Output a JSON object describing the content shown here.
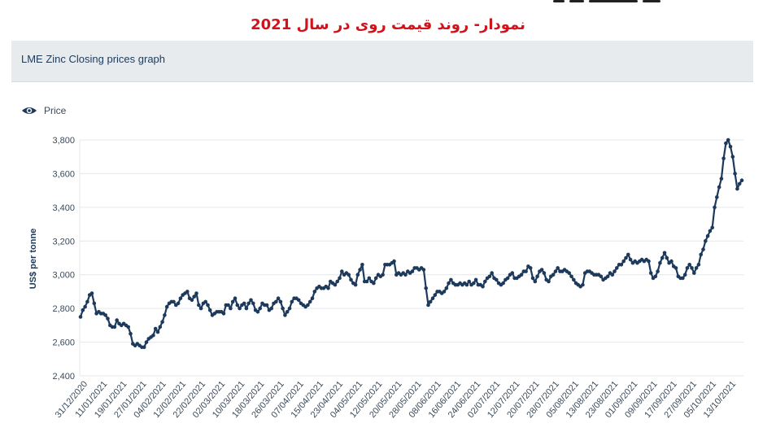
{
  "page": {
    "title": "نمودار- روند قیمت روی در سال 2021"
  },
  "panel": {
    "title": "LME Zinc Closing prices graph"
  },
  "legend": {
    "icon": "eye-icon",
    "label": "Price"
  },
  "colors": {
    "line": "#1d3a5c",
    "grid": "#e4e7ea",
    "header_bg": "#e7ebee",
    "title_red": "#d0121b"
  },
  "chart_data": {
    "type": "line",
    "title": "LME Zinc Closing prices graph",
    "ylabel": "US$ per tonne",
    "xlabel": "",
    "ylim": [
      2400,
      3800
    ],
    "yticks": [
      2400,
      2600,
      2800,
      3000,
      3200,
      3400,
      3600,
      3800
    ],
    "ytick_labels": [
      "2,400",
      "2,600",
      "2,800",
      "3,000",
      "3,200",
      "3,400",
      "3,600",
      "3,800"
    ],
    "x_tick_labels": [
      "31/12/2020",
      "11/01/2021",
      "19/01/2021",
      "27/01/2021",
      "04/02/2021",
      "12/02/2021",
      "22/02/2021",
      "02/03/2021",
      "10/03/2021",
      "18/03/2021",
      "26/03/2021",
      "07/04/2021",
      "15/04/2021",
      "23/04/2021",
      "04/05/2021",
      "12/05/2021",
      "20/05/2021",
      "28/05/2021",
      "08/06/2021",
      "16/06/2021",
      "24/06/2021",
      "02/07/2021",
      "12/07/2021",
      "20/07/2021",
      "28/07/2021",
      "05/08/2021",
      "13/08/2021",
      "23/08/2021",
      "01/09/2021",
      "09/09/2021",
      "17/09/2021",
      "27/09/2021",
      "05/10/2021",
      "13/10/2021"
    ],
    "grid": true,
    "legend_position": "top-left",
    "series": [
      {
        "name": "Price",
        "values": [
          2750,
          2790,
          2810,
          2840,
          2880,
          2890,
          2830,
          2770,
          2780,
          2770,
          2770,
          2760,
          2740,
          2700,
          2690,
          2690,
          2730,
          2710,
          2700,
          2710,
          2700,
          2690,
          2650,
          2590,
          2580,
          2590,
          2580,
          2570,
          2570,
          2600,
          2620,
          2630,
          2640,
          2680,
          2660,
          2690,
          2720,
          2760,
          2810,
          2830,
          2840,
          2840,
          2820,
          2830,
          2860,
          2880,
          2890,
          2900,
          2860,
          2850,
          2870,
          2890,
          2820,
          2800,
          2830,
          2840,
          2820,
          2790,
          2760,
          2770,
          2780,
          2780,
          2780,
          2770,
          2820,
          2820,
          2800,
          2840,
          2860,
          2820,
          2800,
          2820,
          2830,
          2800,
          2830,
          2850,
          2830,
          2790,
          2780,
          2800,
          2830,
          2820,
          2820,
          2790,
          2800,
          2830,
          2840,
          2860,
          2840,
          2800,
          2760,
          2780,
          2800,
          2840,
          2860,
          2860,
          2850,
          2830,
          2820,
          2810,
          2820,
          2840,
          2860,
          2900,
          2920,
          2930,
          2920,
          2920,
          2930,
          2920,
          2960,
          2950,
          2940,
          2960,
          2980,
          3020,
          3000,
          3010,
          3000,
          2970,
          2950,
          2940,
          3000,
          3030,
          3060,
          2960,
          2960,
          2980,
          2960,
          2950,
          2980,
          3000,
          2990,
          3000,
          3060,
          3060,
          3060,
          3070,
          3080,
          3000,
          3010,
          3000,
          3010,
          3000,
          3020,
          3010,
          3020,
          3040,
          3040,
          3030,
          3040,
          3030,
          2920,
          2820,
          2840,
          2860,
          2880,
          2900,
          2900,
          2890,
          2900,
          2920,
          2950,
          2970,
          2950,
          2940,
          2940,
          2950,
          2940,
          2950,
          2940,
          2960,
          2940,
          2950,
          2970,
          2940,
          2940,
          2930,
          2960,
          2980,
          2990,
          3010,
          2980,
          2970,
          2950,
          2940,
          2950,
          2970,
          2980,
          3000,
          3010,
          2980,
          2980,
          2990,
          3000,
          3020,
          3020,
          3050,
          3040,
          2980,
          2960,
          2990,
          3020,
          3030,
          3010,
          2970,
          2960,
          2990,
          3000,
          3020,
          3040,
          3020,
          3020,
          3030,
          3020,
          3010,
          2990,
          2970,
          2950,
          2940,
          2930,
          2940,
          3010,
          3020,
          3020,
          3010,
          3000,
          3000,
          3000,
          2990,
          2970,
          2980,
          2990,
          3010,
          3000,
          3020,
          3040,
          3060,
          3060,
          3080,
          3100,
          3120,
          3090,
          3070,
          3080,
          3070,
          3080,
          3090,
          3080,
          3090,
          3080,
          3010,
          2980,
          2990,
          3020,
          3070,
          3100,
          3130,
          3100,
          3070,
          3080,
          3050,
          3040,
          2990,
          2980,
          2980,
          3000,
          3040,
          3060,
          3040,
          3010,
          3040,
          3060,
          3120,
          3150,
          3200,
          3230,
          3260,
          3280,
          3400,
          3460,
          3520,
          3570,
          3690,
          3780,
          3800,
          3760,
          3700,
          3600,
          3510,
          3540,
          3560
        ]
      }
    ]
  }
}
